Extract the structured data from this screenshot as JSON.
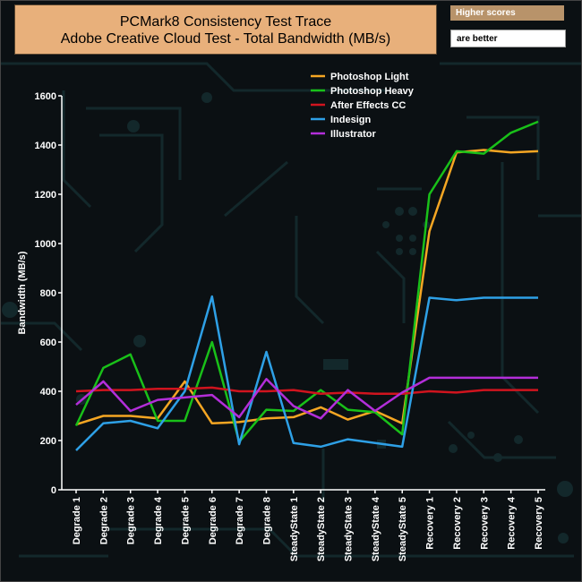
{
  "header": {
    "title_line1": "PCMark8 Consistency Test Trace",
    "title_line2": "Adobe Creative Cloud Test - Total Bandwidth (MB/s)",
    "badge_primary": "Higher scores",
    "badge_secondary": "are better"
  },
  "chart_data": {
    "type": "line",
    "title": "PCMark8 Consistency Test Trace — Adobe Creative Cloud Test - Total Bandwidth (MB/s)",
    "ylabel": "Bandwidth (MB/s)",
    "xlabel": "",
    "ylim": [
      0,
      1600
    ],
    "yticks": [
      0,
      200,
      400,
      600,
      800,
      1000,
      1200,
      1400,
      1600
    ],
    "grid": false,
    "legend_position": "top-right",
    "categories": [
      "Degrade 1",
      "Degrade 2",
      "Degrade 3",
      "Degrade 4",
      "Degrade 5",
      "Degrade 6",
      "Degrade 7",
      "Degrade 8",
      "SteadyState 1",
      "SteadyState 2",
      "SteadyState 3",
      "SteadyState 4",
      "SteadyState 5",
      "Recovery 1",
      "Recovery 2",
      "Recovery 3",
      "Recovery 4",
      "Recovery 5"
    ],
    "series": [
      {
        "name": "Photoshop Light",
        "color": "#f5a623",
        "values": [
          265,
          300,
          300,
          290,
          440,
          270,
          275,
          290,
          295,
          335,
          285,
          320,
          270,
          1050,
          1370,
          1380,
          1370,
          1375
        ]
      },
      {
        "name": " Photoshop Heavy",
        "color": "#19c019",
        "values": [
          260,
          495,
          550,
          280,
          280,
          600,
          195,
          325,
          320,
          405,
          325,
          315,
          225,
          1200,
          1375,
          1365,
          1450,
          1495
        ]
      },
      {
        "name": "After Effects CC",
        "color": "#d0141e",
        "values": [
          400,
          405,
          405,
          410,
          410,
          415,
          400,
          400,
          405,
          390,
          395,
          390,
          390,
          400,
          395,
          405,
          405,
          405
        ]
      },
      {
        "name": "Indesign",
        "color": "#2ea0e6",
        "values": [
          160,
          270,
          280,
          250,
          400,
          785,
          185,
          560,
          190,
          175,
          205,
          190,
          175,
          780,
          770,
          780,
          780,
          780
        ]
      },
      {
        "name": "Illustrator",
        "color": "#b32ed9",
        "values": [
          345,
          440,
          320,
          365,
          375,
          385,
          295,
          450,
          340,
          290,
          405,
          320,
          395,
          455,
          455,
          455,
          455,
          455
        ]
      }
    ]
  }
}
